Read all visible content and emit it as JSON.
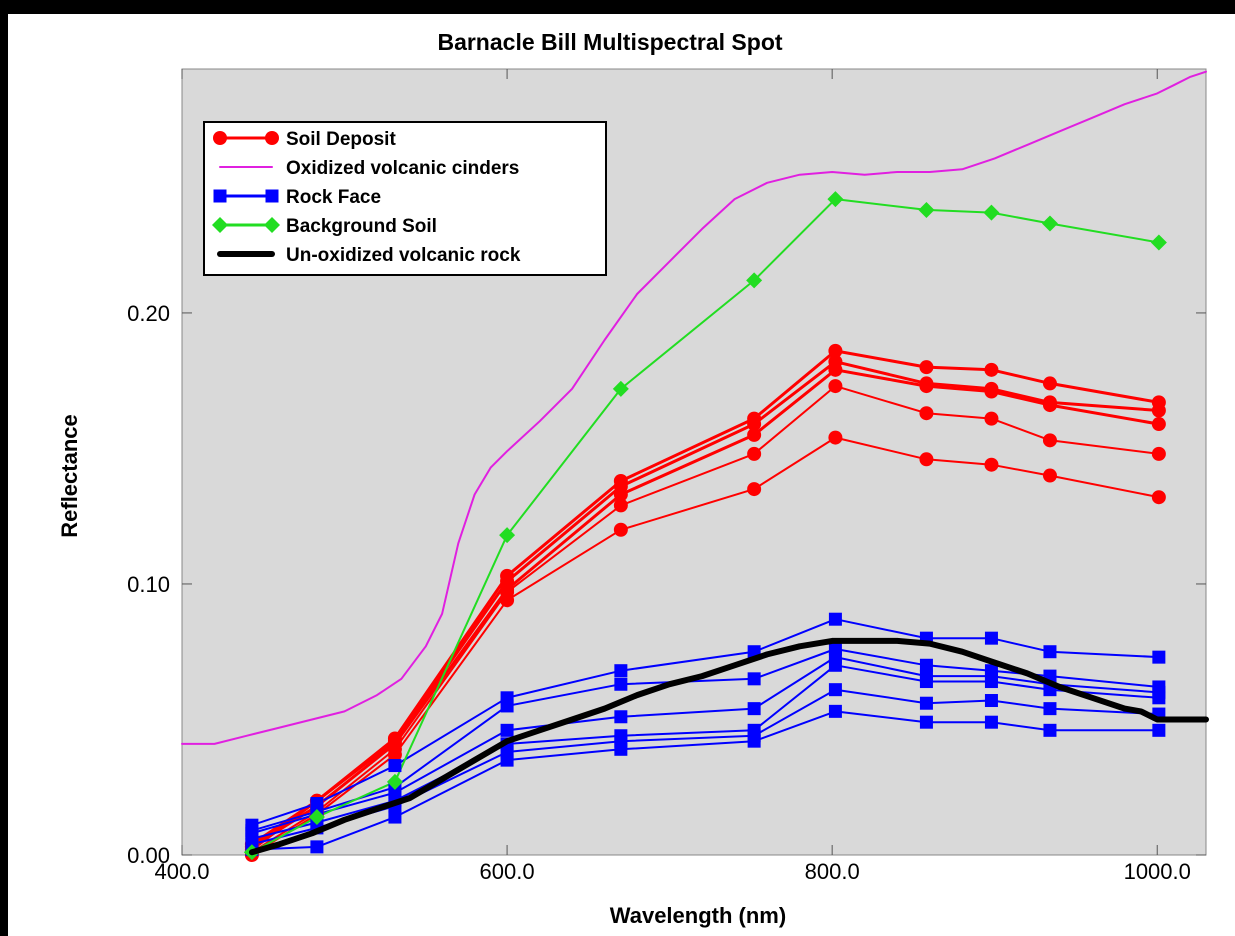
{
  "chart_data": {
    "type": "line",
    "title": "Barnacle Bill Multispectral Spot",
    "xlabel": "Wavelength (nm)",
    "ylabel": "Reflectance",
    "xlim": [
      400,
      1030
    ],
    "ylim": [
      0,
      0.29
    ],
    "xticks": [
      400,
      600,
      800,
      1000
    ],
    "xtick_labels": [
      "400.0",
      "600.0",
      "800.0",
      "1000.0"
    ],
    "yticks": [
      0,
      0.1,
      0.2
    ],
    "ytick_labels": [
      "0.00",
      "0.10",
      "0.20"
    ],
    "grid": false,
    "legend_position": "top-left",
    "legend": [
      {
        "label": "Soil Deposit",
        "color": "#ff0000",
        "marker": "circle"
      },
      {
        "label": "Oxidized volcanic cinders",
        "color": "#e020e0",
        "marker": "none"
      },
      {
        "label": "Rock Face",
        "color": "#0000ff",
        "marker": "square"
      },
      {
        "label": "Background Soil",
        "color": "#22dd22",
        "marker": "diamond"
      },
      {
        "label": "Un-oxidized volcanic rock",
        "color": "#000000",
        "marker": "none"
      }
    ],
    "wavelengths": [
      443,
      483,
      531,
      600,
      670,
      752,
      802,
      858,
      898,
      934,
      1001
    ],
    "series": [
      {
        "group": "Soil Deposit",
        "color": "#ff0000",
        "marker": "circle",
        "width": 3,
        "values": [
          0.002,
          0.02,
          0.043,
          0.103,
          0.138,
          0.161,
          0.186,
          0.18,
          0.179,
          0.174,
          0.167
        ]
      },
      {
        "group": "Soil Deposit",
        "color": "#ff0000",
        "marker": "circle",
        "width": 3,
        "values": [
          0.004,
          0.02,
          0.042,
          0.101,
          0.136,
          0.159,
          0.182,
          0.174,
          0.172,
          0.167,
          0.164
        ]
      },
      {
        "group": "Soil Deposit",
        "color": "#ff0000",
        "marker": "circle",
        "width": 3,
        "values": [
          0.003,
          0.018,
          0.041,
          0.098,
          0.133,
          0.155,
          0.179,
          0.173,
          0.171,
          0.166,
          0.159
        ]
      },
      {
        "group": "Soil Deposit",
        "color": "#ff0000",
        "marker": "circle",
        "width": 2,
        "values": [
          0.001,
          0.016,
          0.039,
          0.097,
          0.129,
          0.148,
          0.173,
          0.163,
          0.161,
          0.153,
          0.148
        ]
      },
      {
        "group": "Soil Deposit",
        "color": "#ff0000",
        "marker": "circle",
        "width": 2,
        "values": [
          0.0,
          0.015,
          0.037,
          0.094,
          0.12,
          0.135,
          0.154,
          0.146,
          0.144,
          0.14,
          0.132
        ]
      },
      {
        "group": "Rock Face",
        "color": "#0000ff",
        "marker": "square",
        "width": 2,
        "values": [
          0.011,
          0.019,
          0.033,
          0.058,
          0.068,
          0.075,
          0.087,
          0.08,
          0.08,
          0.075,
          0.073
        ]
      },
      {
        "group": "Rock Face",
        "color": "#0000ff",
        "marker": "square",
        "width": 2,
        "values": [
          0.009,
          0.016,
          0.025,
          0.055,
          0.063,
          0.065,
          0.076,
          0.07,
          0.068,
          0.066,
          0.062
        ]
      },
      {
        "group": "Rock Face",
        "color": "#0000ff",
        "marker": "square",
        "width": 2,
        "values": [
          0.008,
          0.015,
          0.023,
          0.046,
          0.051,
          0.054,
          0.073,
          0.066,
          0.066,
          0.063,
          0.06
        ]
      },
      {
        "group": "Rock Face",
        "color": "#0000ff",
        "marker": "square",
        "width": 2,
        "values": [
          0.006,
          0.012,
          0.02,
          0.041,
          0.044,
          0.046,
          0.07,
          0.064,
          0.064,
          0.061,
          0.058
        ]
      },
      {
        "group": "Rock Face",
        "color": "#0000ff",
        "marker": "square",
        "width": 2,
        "values": [
          0.004,
          0.01,
          0.018,
          0.038,
          0.042,
          0.044,
          0.061,
          0.056,
          0.057,
          0.054,
          0.052
        ]
      },
      {
        "group": "Rock Face",
        "color": "#0000ff",
        "marker": "square",
        "width": 2,
        "values": [
          0.002,
          0.003,
          0.014,
          0.035,
          0.039,
          0.042,
          0.053,
          0.049,
          0.049,
          0.046,
          0.046
        ]
      },
      {
        "group": "Background Soil",
        "color": "#22dd22",
        "marker": "diamond",
        "width": 2,
        "values": [
          0.001,
          0.014,
          0.027,
          0.118,
          0.172,
          0.212,
          0.242,
          0.238,
          0.237,
          0.233,
          0.226
        ]
      }
    ],
    "curves": [
      {
        "group": "Oxidized volcanic cinders",
        "color": "#e020e0",
        "width": 2,
        "x": [
          400,
          420,
          440,
          460,
          480,
          500,
          520,
          535,
          550,
          560,
          570,
          580,
          590,
          600,
          620,
          640,
          660,
          680,
          700,
          720,
          740,
          760,
          780,
          800,
          820,
          840,
          860,
          880,
          900,
          920,
          940,
          960,
          980,
          1000,
          1010,
          1020,
          1030
        ],
        "y": [
          0.041,
          0.041,
          0.044,
          0.047,
          0.05,
          0.053,
          0.059,
          0.065,
          0.077,
          0.089,
          0.115,
          0.133,
          0.143,
          0.149,
          0.16,
          0.172,
          0.19,
          0.207,
          0.219,
          0.231,
          0.242,
          0.248,
          0.251,
          0.252,
          0.251,
          0.252,
          0.252,
          0.253,
          0.257,
          0.262,
          0.267,
          0.272,
          0.277,
          0.281,
          0.284,
          0.287,
          0.289
        ]
      },
      {
        "group": "Un-oxidized volcanic rock",
        "color": "#000000",
        "width": 6,
        "x": [
          443,
          460,
          480,
          500,
          520,
          540,
          560,
          580,
          600,
          620,
          640,
          660,
          680,
          700,
          720,
          740,
          760,
          780,
          800,
          820,
          840,
          860,
          880,
          900,
          920,
          940,
          960,
          980,
          990,
          1000,
          1010,
          1030
        ],
        "y": [
          0.001,
          0.004,
          0.008,
          0.013,
          0.017,
          0.021,
          0.028,
          0.035,
          0.042,
          0.046,
          0.05,
          0.054,
          0.059,
          0.063,
          0.066,
          0.07,
          0.074,
          0.077,
          0.079,
          0.079,
          0.079,
          0.078,
          0.075,
          0.071,
          0.067,
          0.062,
          0.058,
          0.054,
          0.053,
          0.05,
          0.05,
          0.05
        ]
      }
    ]
  }
}
